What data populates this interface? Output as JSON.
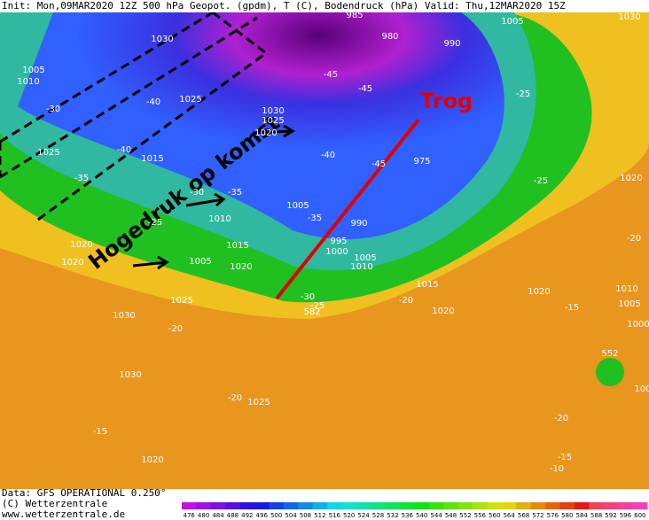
{
  "header": {
    "text": "Init: Mon,09MAR2020 12Z 500 hPa Geopot. (gpdm), T (C), Bodendruck (hPa) Valid: Thu,12MAR2020 15Z"
  },
  "annotations": {
    "trough": "Trog",
    "high": "Hogedruk op komst"
  },
  "map_labels": [
    "985",
    "980",
    "990",
    "1005",
    "1030",
    "1030",
    "1005",
    "1010",
    "1025",
    "-30",
    "-40",
    "-45",
    "-45",
    "-25",
    "1030",
    "1025",
    "1020",
    "-40",
    "1015",
    "-40",
    "-45",
    "975",
    "-25",
    "1020",
    "1025",
    "-35",
    "-30",
    "-35",
    "1005",
    "-35",
    "990",
    "1010",
    "-25",
    "-20",
    "1020",
    "1015",
    "995",
    "1000",
    "1020",
    "1005",
    "1020",
    "1005",
    "1010",
    "1015",
    "1020",
    "1010",
    "1005",
    "-30",
    "-25",
    "-20",
    "1025",
    "582",
    "1020",
    "-15",
    "1000",
    "1030",
    "-20",
    "552",
    "1030",
    "100",
    "-20",
    "1025",
    "-15",
    "-20",
    "1020",
    "-15",
    "-10"
  ],
  "footer": {
    "data": "Data: GFS OPERATIONAL 0.250°",
    "copyright": "(C) Wetterzentrale",
    "url": "www.wetterzentrale.de"
  },
  "colorbar": {
    "ticks": [
      476,
      480,
      484,
      488,
      492,
      496,
      500,
      504,
      508,
      512,
      516,
      520,
      524,
      528,
      532,
      536,
      540,
      544,
      548,
      552,
      556,
      560,
      564,
      568,
      572,
      576,
      580,
      584,
      588,
      592,
      596,
      600
    ]
  }
}
